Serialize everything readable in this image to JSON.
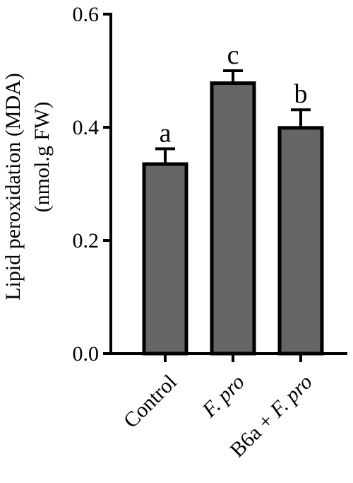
{
  "chart_data": {
    "type": "bar",
    "ylabel_line1": "Lipid peroxidation (MDA)",
    "ylabel_line2": "(nmol.g FW)",
    "ylim": [
      0,
      0.6
    ],
    "yticks": [
      "0.0",
      "0.2",
      "0.4",
      "0.6"
    ],
    "ytick_values": [
      0,
      0.2,
      0.4,
      0.6
    ],
    "categories": [
      {
        "parts": [
          {
            "text": "Control",
            "italic": false
          }
        ]
      },
      {
        "parts": [
          {
            "text": "F. pro",
            "italic": true
          }
        ]
      },
      {
        "parts": [
          {
            "text": "B6a + ",
            "italic": false
          },
          {
            "text": "F. pro",
            "italic": true
          }
        ]
      }
    ],
    "values": [
      0.335,
      0.478,
      0.399
    ],
    "errors": [
      0.027,
      0.022,
      0.032
    ],
    "sig_letters": [
      "a",
      "c",
      "b"
    ],
    "grid": false,
    "legend": "none",
    "colors": {
      "bar_fill": "#666666",
      "bar_stroke": "#000000",
      "axis": "#000000"
    }
  }
}
